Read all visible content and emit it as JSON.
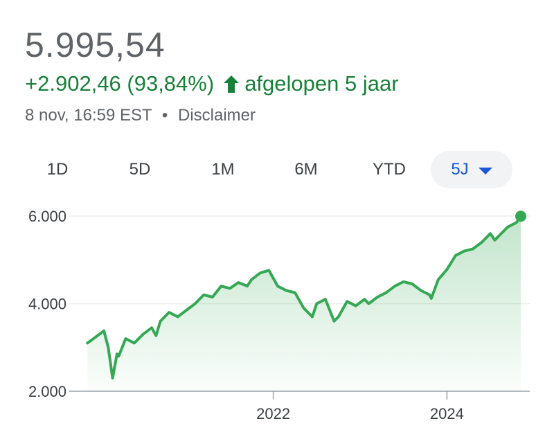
{
  "quote": {
    "price": "5.995,54",
    "change": "+2.902,46 (93,84%)",
    "period": "afgelopen 5 jaar",
    "timestamp": "8 nov, 16:59 EST",
    "separator": "•",
    "disclaimer": "Disclaimer",
    "trend_color": "#188038"
  },
  "ranges": {
    "tabs": [
      "1D",
      "5D",
      "1M",
      "6M",
      "YTD",
      "5J"
    ],
    "selected": "5J",
    "accent": "#1a57d6"
  },
  "chart_data": {
    "type": "area",
    "title": "",
    "xlabel": "",
    "ylabel": "",
    "ylim": [
      2000,
      6000
    ],
    "y_ticks": [
      2000,
      4000,
      6000
    ],
    "y_tick_labels": [
      "2.000",
      "4.000",
      "6.000"
    ],
    "x_tick_labels": [
      "2022",
      "2024"
    ],
    "x_ticks": [
      2022.0,
      2024.0
    ],
    "xlim": [
      2019.85,
      2024.85
    ],
    "grid": true,
    "line_color": "#34a853",
    "series": [
      {
        "x": [
          2019.86,
          2019.95,
          2020.05,
          2020.1,
          2020.15,
          2020.2,
          2020.22,
          2020.3,
          2020.4,
          2020.5,
          2020.6,
          2020.65,
          2020.7,
          2020.8,
          2020.9,
          2021.0,
          2021.1,
          2021.2,
          2021.3,
          2021.4,
          2021.5,
          2021.6,
          2021.7,
          2021.75,
          2021.85,
          2021.95,
          2022.05,
          2022.15,
          2022.25,
          2022.35,
          2022.45,
          2022.5,
          2022.6,
          2022.7,
          2022.75,
          2022.85,
          2022.95,
          2023.05,
          2023.1,
          2023.2,
          2023.3,
          2023.4,
          2023.5,
          2023.6,
          2023.7,
          2023.8,
          2023.82,
          2023.9,
          2024.0,
          2024.1,
          2024.2,
          2024.3,
          2024.4,
          2024.5,
          2024.55,
          2024.6,
          2024.7,
          2024.8,
          2024.85
        ],
        "y": [
          3100,
          3230,
          3380,
          3000,
          2300,
          2850,
          2800,
          3200,
          3100,
          3300,
          3450,
          3270,
          3600,
          3800,
          3700,
          3850,
          4000,
          4200,
          4150,
          4400,
          4350,
          4480,
          4400,
          4550,
          4700,
          4760,
          4400,
          4300,
          4250,
          3900,
          3700,
          4000,
          4100,
          3600,
          3700,
          4050,
          3950,
          4100,
          4000,
          4150,
          4250,
          4400,
          4500,
          4450,
          4300,
          4200,
          4120,
          4550,
          4780,
          5100,
          5200,
          5250,
          5400,
          5600,
          5450,
          5550,
          5750,
          5850,
          5995.54
        ]
      }
    ]
  }
}
